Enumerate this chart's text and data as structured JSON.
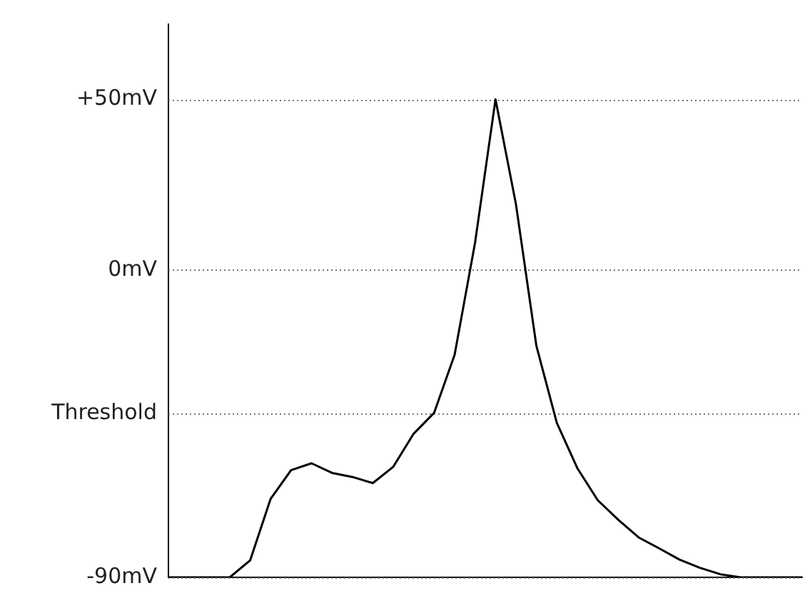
{
  "chart_data": {
    "type": "line",
    "categories": [
      null,
      null,
      null,
      null,
      null,
      null,
      null,
      null,
      null,
      null,
      null,
      null,
      null,
      null,
      null,
      null,
      null,
      null,
      null,
      null,
      null,
      null,
      null,
      null,
      null,
      null,
      null,
      null,
      null,
      null,
      null,
      null
    ],
    "series": [
      {
        "color": "#000000",
        "values": [
          -90,
          -90,
          -90,
          -90,
          -85,
          -67,
          -58.6,
          -56.6,
          -59.4,
          -60.6,
          -62.4,
          -57.6,
          -47.9,
          -41.8,
          -24.8,
          8,
          50,
          19.3,
          -22.2,
          -44.8,
          -58,
          -67.4,
          -73.1,
          -78.3,
          -81.5,
          -84.8,
          -87.2,
          -89.1,
          -90,
          -90,
          -90,
          -90
        ]
      }
    ],
    "ylim": [
      -90,
      72
    ],
    "yticks": [
      {
        "value": 50,
        "label": "+50mV"
      },
      {
        "value": 0,
        "label": "0mV"
      },
      {
        "value": -42,
        "label": "Threshold"
      },
      {
        "value": -90,
        "label": "-90mV"
      }
    ],
    "tick_labels": "y",
    "grid": "y",
    "marker": "none",
    "line_style": "solid",
    "legend": false
  }
}
